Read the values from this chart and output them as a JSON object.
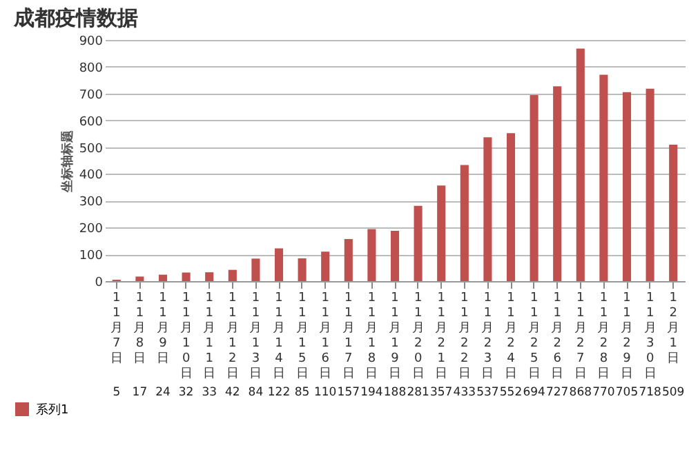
{
  "chart_data": {
    "type": "bar",
    "title": "成都疫情数据",
    "ylabel": "坐标轴标题",
    "categories": [
      "11月7日",
      "11月8日",
      "11月9日",
      "11月10日",
      "11月11日",
      "11月12日",
      "11月13日",
      "11月14日",
      "11月15日",
      "11月16日",
      "11月17日",
      "11月18日",
      "11月19日",
      "11月20日",
      "11月21日",
      "11月22日",
      "11月23日",
      "11月24日",
      "11月25日",
      "11月26日",
      "11月27日",
      "11月28日",
      "11月29日",
      "11月30日",
      "12月1日"
    ],
    "series": [
      {
        "name": "系列1",
        "color": "#c0504d",
        "values": [
          5,
          17,
          24,
          32,
          33,
          42,
          84,
          122,
          85,
          110,
          157,
          194,
          188,
          281,
          357,
          433,
          537,
          552,
          694,
          727,
          868,
          770,
          705,
          718,
          509
        ]
      }
    ],
    "ylim": [
      0,
      900
    ],
    "yticks": [
      0,
      100,
      200,
      300,
      400,
      500,
      600,
      700,
      800,
      900
    ],
    "grid": "y",
    "data_labels": true,
    "legend": "bottom left"
  }
}
